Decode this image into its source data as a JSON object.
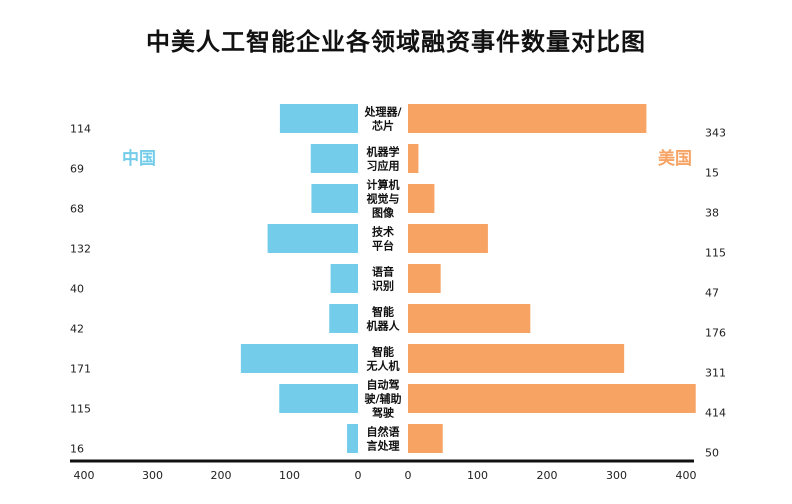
{
  "chart_data": {
    "type": "bar",
    "title": "中美人工智能企业各领域融资事件数量对比图",
    "categories": [
      [
        "处理器/",
        "芯片"
      ],
      [
        "机器学",
        "习应用"
      ],
      [
        "计算机",
        "视觉与",
        "图像"
      ],
      [
        "技术",
        "平台"
      ],
      [
        "语音",
        "识别"
      ],
      [
        "智能",
        "机器人"
      ],
      [
        "智能",
        "无人机"
      ],
      [
        "自动驾",
        "驶/辅助",
        "驾驶"
      ],
      [
        "自然语",
        "言处理"
      ]
    ],
    "series": [
      {
        "name": "中国",
        "color": "#73cdea",
        "values": [
          114,
          69,
          68,
          132,
          40,
          42,
          171,
          115,
          16
        ]
      },
      {
        "name": "美国",
        "color": "#f7a364",
        "values": [
          343,
          15,
          38,
          115,
          47,
          176,
          311,
          414,
          50
        ]
      }
    ],
    "left_axis": {
      "ticks": [
        "400",
        "300",
        "200",
        "100",
        "0"
      ],
      "max": 400
    },
    "right_axis": {
      "ticks": [
        "0",
        "100",
        "200",
        "300",
        "400"
      ],
      "max": 400
    },
    "grid": false
  }
}
